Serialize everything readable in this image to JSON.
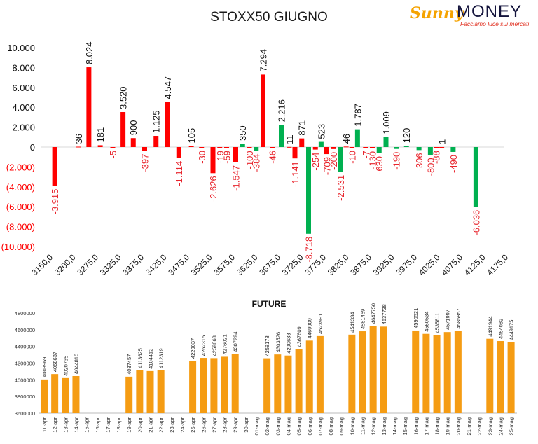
{
  "page": {
    "title": "STOXX50 GIUGNO",
    "logo": {
      "brand_a": "Sunny",
      "brand_b": "MONEY",
      "tagline": "Facciamo luce sui mercati"
    }
  },
  "colors": {
    "positive": "#00b050",
    "negative": "#ff0000",
    "future": "#f59c13",
    "label_negative": "#e8252d"
  },
  "chart_data": [
    {
      "type": "bar",
      "title": "",
      "xlabel": "",
      "ylabel": "",
      "ylim": [
        -10000,
        10000
      ],
      "yticks": [
        10000,
        8000,
        6000,
        4000,
        2000,
        0,
        -2000,
        -4000,
        -6000,
        -8000,
        -10000
      ],
      "ytick_labels": [
        "10.000",
        "8.000",
        "6.000",
        "4.000",
        "2.000",
        "0",
        "(2.000)",
        "(4.000)",
        "(6.000)",
        "(8.000)",
        "(10.000)"
      ],
      "categories": [
        "3150,0",
        "3200,0",
        "3275,0",
        "3325,0",
        "3375,0",
        "3425,0",
        "3475,0",
        "3525,0",
        "3575,0",
        "3625,0",
        "3675,0",
        "3725,0",
        "3775,0",
        "3825,0",
        "3875,0",
        "3925,0",
        "3975,0",
        "4025,0",
        "4075,0",
        "4125,0",
        "4175,0"
      ],
      "series": [
        {
          "bars": [
            {
              "x": 0.25,
              "value": -3915,
              "label": "-3.915"
            },
            {
              "x": 1.3,
              "value": 36,
              "label": "36"
            },
            {
              "x": 1.75,
              "value": 8024,
              "label": "8.024"
            },
            {
              "x": 2.25,
              "value": 181,
              "label": "181"
            },
            {
              "x": 2.8,
              "value": -5,
              "label": "-5"
            },
            {
              "x": 3.25,
              "value": 3520,
              "label": "3.520"
            },
            {
              "x": 3.7,
              "value": 900,
              "label": "900"
            },
            {
              "x": 4.2,
              "value": -397,
              "label": "-397"
            },
            {
              "x": 4.7,
              "value": 1125,
              "label": "1.125"
            },
            {
              "x": 5.2,
              "value": 4547,
              "label": "4.547"
            },
            {
              "x": 5.7,
              "value": -1114,
              "label": "-1.114"
            },
            {
              "x": 6.25,
              "value": 105,
              "label": "105"
            },
            {
              "x": 6.7,
              "value": -30,
              "label": "-30"
            },
            {
              "x": 7.2,
              "value": -2626,
              "label": "-2.626"
            },
            {
              "x": 7.5,
              "value": -19,
              "label": "-19"
            },
            {
              "x": 7.8,
              "value": -59,
              "label": "-59"
            },
            {
              "x": 8.2,
              "value": -1547,
              "label": "-1.547"
            },
            {
              "x": 8.5,
              "value": 350,
              "label": "350"
            },
            {
              "x": 8.8,
              "value": -100,
              "label": "-100"
            },
            {
              "x": 9.1,
              "value": -384,
              "label": "-384"
            },
            {
              "x": 9.4,
              "value": 7294,
              "label": "7.294"
            },
            {
              "x": 9.8,
              "value": -46,
              "label": "-46"
            },
            {
              "x": 10.2,
              "value": 2216,
              "label": "2.216"
            },
            {
              "x": 10.55,
              "value": 11,
              "label": "11"
            },
            {
              "x": 10.8,
              "value": -1141,
              "label": "-1.141"
            },
            {
              "x": 11.1,
              "value": 871,
              "label": "871"
            },
            {
              "x": 11.4,
              "value": -8718,
              "label": "-8.718"
            },
            {
              "x": 11.7,
              "value": -254,
              "label": "-254"
            },
            {
              "x": 11.95,
              "value": 523,
              "label": "523"
            },
            {
              "x": 12.2,
              "value": -709,
              "label": "-709"
            },
            {
              "x": 12.5,
              "value": -200,
              "label": "-200"
            },
            {
              "x": 12.8,
              "value": -2531,
              "label": "-2.531"
            },
            {
              "x": 13.05,
              "value": 46,
              "label": "46"
            },
            {
              "x": 13.3,
              "value": -10,
              "label": "-10"
            },
            {
              "x": 13.55,
              "value": 1787,
              "label": "1.787"
            },
            {
              "x": 13.9,
              "value": -7,
              "label": "-7"
            },
            {
              "x": 14.2,
              "value": -130,
              "label": "-130"
            },
            {
              "x": 14.5,
              "value": -630,
              "label": "-630"
            },
            {
              "x": 14.8,
              "value": 1009,
              "label": "1.009"
            },
            {
              "x": 15.25,
              "value": -190,
              "label": "-190"
            },
            {
              "x": 15.7,
              "value": 120,
              "label": "120"
            },
            {
              "x": 16.25,
              "value": -306,
              "label": "-306"
            },
            {
              "x": 16.75,
              "value": -800,
              "label": "-800"
            },
            {
              "x": 17.0,
              "value": -88,
              "label": "-88"
            },
            {
              "x": 17.25,
              "value": 1,
              "label": "1"
            },
            {
              "x": 17.75,
              "value": -490,
              "label": "-490"
            },
            {
              "x": 18.75,
              "value": -6036,
              "label": "-6.036"
            }
          ]
        }
      ]
    },
    {
      "type": "bar",
      "title": "FUTURE",
      "xlabel": "",
      "ylabel": "",
      "ylim": [
        3600000,
        4800000
      ],
      "yticks": [
        4800000,
        4600000,
        4400000,
        4200000,
        4000000,
        3800000,
        3600000
      ],
      "ytick_labels": [
        "4800000",
        "4600000",
        "4400000",
        "4200000",
        "4000000",
        "3800000",
        "3600000"
      ],
      "categories": [
        "11-apr",
        "12-apr",
        "13-apr",
        "14-apr",
        "15-apr",
        "16-apr",
        "17-apr",
        "18-apr",
        "19-apr",
        "20-apr",
        "21-apr",
        "22-apr",
        "23-apr",
        "24-apr",
        "25-apr",
        "26-apr",
        "27-apr",
        "28-apr",
        "29-apr",
        "30-apr",
        "01-mag",
        "02-mag",
        "03-mag",
        "04-mag",
        "05-mag",
        "06-mag",
        "07-mag",
        "08-mag",
        "09-mag",
        "10-mag",
        "11-mag",
        "12-mag",
        "13-mag",
        "14-mag",
        "15-mag",
        "16-mag",
        "17-mag",
        "18-mag",
        "19-mag",
        "20-mag",
        "21-mag",
        "22-mag",
        "23-mag",
        "24-mag",
        "25-mag"
      ],
      "values": [
        4003969,
        4068637,
        4020735,
        4044810,
        null,
        null,
        null,
        null,
        4037457,
        4113625,
        4104412,
        4112319,
        null,
        null,
        4229037,
        4262315,
        4259863,
        4276021,
        4307294,
        null,
        null,
        4258178,
        4303526,
        4290633,
        4367609,
        4469909,
        4523991,
        null,
        null,
        4541334,
        4581469,
        4647750,
        4637738,
        null,
        null,
        4590521,
        4550534,
        4535811,
        4571997,
        4585857,
        null,
        null,
        4491944,
        4464082,
        4449175
      ]
    }
  ]
}
